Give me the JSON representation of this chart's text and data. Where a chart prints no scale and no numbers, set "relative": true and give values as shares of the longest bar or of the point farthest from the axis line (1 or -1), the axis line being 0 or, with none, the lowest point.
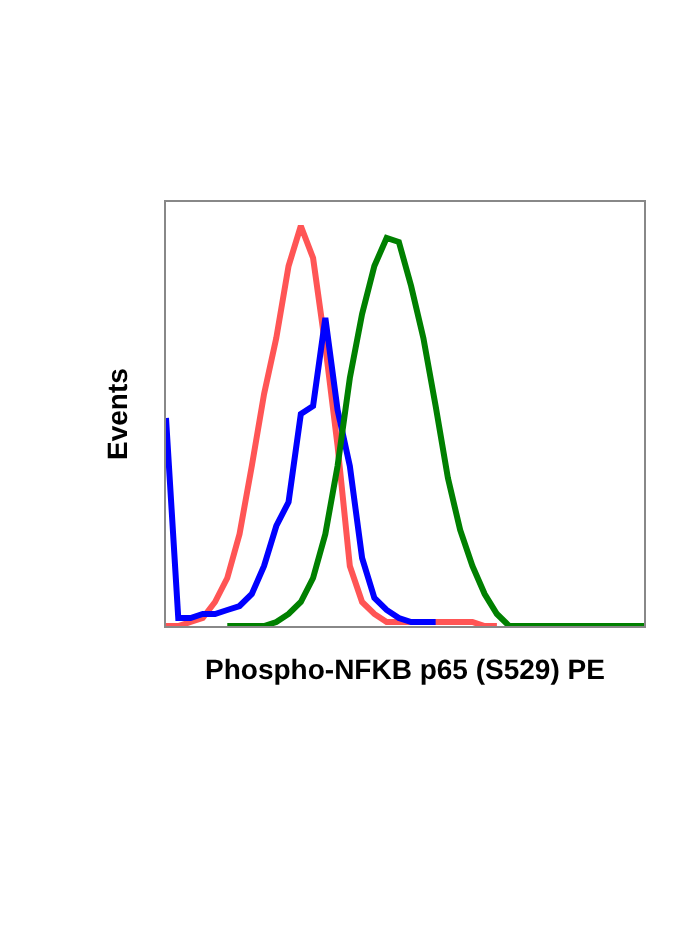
{
  "chart_data": {
    "type": "line",
    "relative": true,
    "xlabel": "Phospho-NFKB p65 (S529) PE",
    "ylabel": "Events",
    "marker": "none",
    "line_style": "solid",
    "categories": [
      null,
      null,
      null,
      null,
      null,
      null,
      null,
      null,
      null,
      null,
      null,
      null,
      null,
      null,
      null,
      null,
      null,
      null,
      null,
      null,
      null,
      null,
      null,
      null,
      null,
      null,
      null,
      null,
      null,
      null,
      null,
      null,
      null,
      null,
      null,
      null,
      null,
      null,
      null,
      null
    ],
    "series": [
      {
        "color": "#ff5555",
        "values": [
          0,
          0,
          0.01,
          0.02,
          0.06,
          0.12,
          0.23,
          0.4,
          0.58,
          0.72,
          0.9,
          1,
          0.92,
          0.7,
          0.45,
          0.15,
          0.06,
          0.03,
          0.01,
          0.01,
          0.01,
          0.01,
          0.01,
          0.01,
          0.01,
          0.01,
          0,
          0,
          null,
          null,
          null,
          null,
          null,
          null,
          null,
          null,
          null,
          null,
          null,
          null
        ]
      },
      {
        "color": "#0000ff",
        "values": [
          0.52,
          0.02,
          0.02,
          0.03,
          0.03,
          0.04,
          0.05,
          0.08,
          0.15,
          0.25,
          0.31,
          0.53,
          0.55,
          0.77,
          0.54,
          0.4,
          0.17,
          0.07,
          0.04,
          0.02,
          0.01,
          0.01,
          0.01,
          null,
          null,
          null,
          null,
          null,
          null,
          null,
          null,
          null,
          null,
          null,
          null,
          null,
          null,
          null,
          null,
          null
        ]
      },
      {
        "color": "#008000",
        "values": [
          null,
          null,
          null,
          null,
          null,
          0,
          0,
          0,
          0,
          0.01,
          0.03,
          0.06,
          0.12,
          0.23,
          0.4,
          0.62,
          0.78,
          0.9,
          0.97,
          0.96,
          0.85,
          0.72,
          0.55,
          0.37,
          0.24,
          0.15,
          0.08,
          0.03,
          0,
          0,
          0,
          0,
          0,
          0,
          0,
          0,
          0,
          0,
          0,
          0
        ]
      }
    ]
  }
}
